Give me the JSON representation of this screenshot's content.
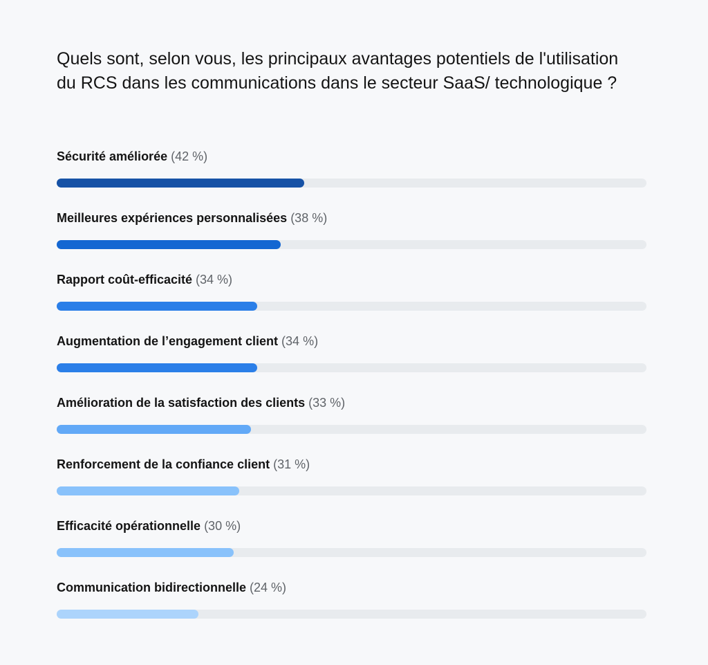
{
  "chart_data": {
    "type": "bar",
    "orientation": "horizontal",
    "title": "Quels sont, selon vous, les principaux avantages potentiels de l'utilisation du RCS dans les communications dans le secteur SaaS/ technologique ?",
    "xlim": [
      0,
      100
    ],
    "grid": false,
    "categories": [
      "Sécurité améliorée",
      "Meilleures expériences personnalisées",
      "Rapport coût-efficacité",
      "Augmentation de l’engagement client",
      "Amélioration de la satisfaction des clients",
      "Renforcement de la confiance client",
      "Efficacité opérationnelle",
      "Communication bidirectionnelle"
    ],
    "values": [
      42,
      38,
      34,
      34,
      33,
      31,
      30,
      24
    ],
    "value_labels": [
      "(42 %)",
      "(38 %)",
      "(34 %)",
      "(34 %)",
      "(33 %)",
      "(31 %)",
      "(30 %)",
      "(24 %)"
    ],
    "colors": [
      "#1652a6",
      "#1467d2",
      "#2b7fe8",
      "#2b7fe8",
      "#62a9f7",
      "#89c2fb",
      "#89c2fb",
      "#acd4fc"
    ],
    "track_color": "#e8ebee"
  }
}
